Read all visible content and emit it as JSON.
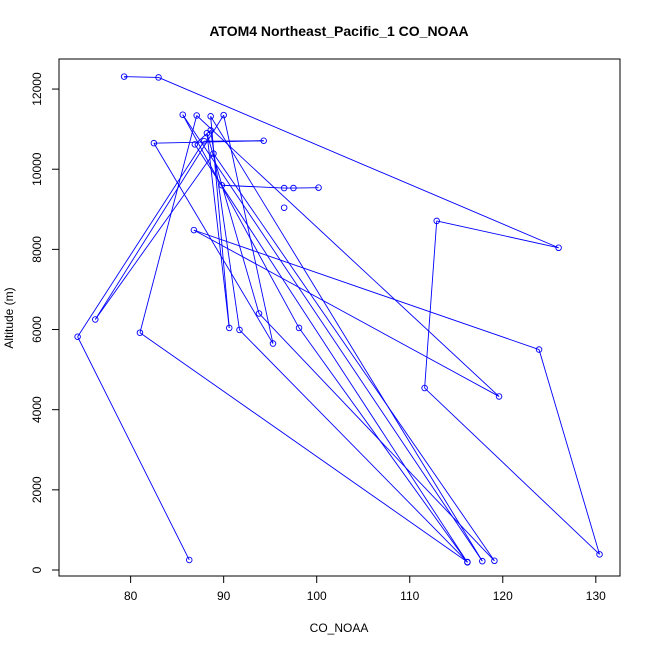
{
  "chart_data": {
    "type": "line",
    "title": "ATOM4 Northeast_Pacific_1 CO_NOAA",
    "xlabel": "CO_NOAA",
    "ylabel": "Altitude (m)",
    "xlim": [
      72.3,
      132.6
    ],
    "ylim": [
      -150,
      12750
    ],
    "xticks": [
      80,
      90,
      100,
      110,
      120,
      130
    ],
    "yticks": [
      0,
      2000,
      4000,
      6000,
      8000,
      10000,
      12000
    ],
    "color": "#0000ff",
    "marker": "open-circle",
    "points": [
      {
        "x": 86.3,
        "y": 250
      },
      {
        "x": 74.3,
        "y": 5820
      },
      {
        "x": 87.9,
        "y": 10700
      },
      {
        "x": 94.3,
        "y": 10710
      },
      {
        "x": 82.5,
        "y": 10650
      },
      {
        "x": 95.3,
        "y": 5650
      },
      {
        "x": 90.0,
        "y": 11350
      },
      {
        "x": 76.2,
        "y": 6250
      },
      {
        "x": 88.9,
        "y": 10390
      },
      {
        "x": 119.1,
        "y": 230
      },
      {
        "x": 93.8,
        "y": 6400
      },
      {
        "x": 88.2,
        "y": 10900
      },
      {
        "x": 90.6,
        "y": 6040
      },
      {
        "x": 88.6,
        "y": 11320
      },
      {
        "x": 117.8,
        "y": 220
      },
      {
        "x": 85.6,
        "y": 11360
      },
      {
        "x": 98.1,
        "y": 6040
      },
      {
        "x": 116.2,
        "y": 190
      },
      {
        "x": 86.9,
        "y": 10620
      },
      {
        "x": 88.6,
        "y": 10970
      },
      {
        "x": 91.7,
        "y": 5990
      },
      {
        "x": 116.2,
        "y": 200
      },
      {
        "x": 81.0,
        "y": 5920
      },
      {
        "x": 87.1,
        "y": 11340
      },
      {
        "x": 119.6,
        "y": 4330
      },
      {
        "x": 86.8,
        "y": 8480
      },
      {
        "x": 123.9,
        "y": 5500
      },
      {
        "x": 130.4,
        "y": 390
      },
      {
        "x": 111.6,
        "y": 4540
      },
      {
        "x": 112.9,
        "y": 8710
      },
      {
        "x": 126.0,
        "y": 8040
      },
      {
        "x": 83.0,
        "y": 12290
      },
      {
        "x": 79.3,
        "y": 12310
      }
    ],
    "extra_points": [
      {
        "x": 89.8,
        "y": 9600
      },
      {
        "x": 96.5,
        "y": 9530
      },
      {
        "x": 97.5,
        "y": 9530
      },
      {
        "x": 100.2,
        "y": 9540
      },
      {
        "x": 96.5,
        "y": 9040
      }
    ],
    "extra_segments": [
      [
        0,
        1
      ],
      [
        1,
        2
      ],
      [
        2,
        3
      ]
    ]
  }
}
